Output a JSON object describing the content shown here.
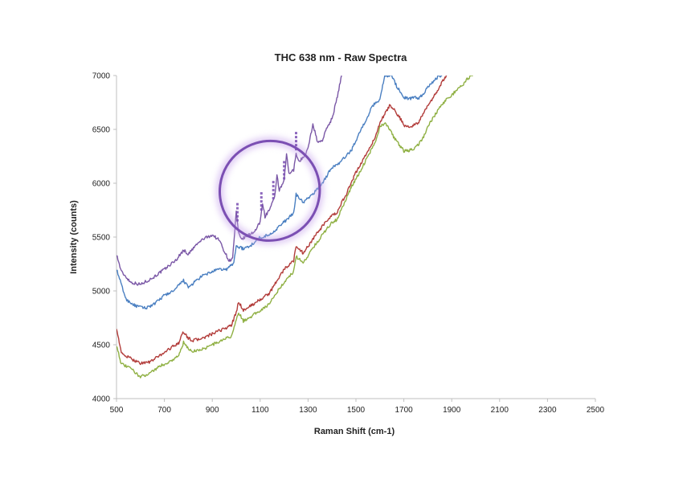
{
  "chart_data": {
    "type": "line",
    "title": "THC 638 nm - Raw Spectra",
    "xlabel": "Raman Shift (cm-1)",
    "ylabel": "Intensity (counts)",
    "xlim": [
      500,
      2500
    ],
    "ylim": [
      4000,
      7000
    ],
    "xticks": [
      "500",
      "700",
      "900",
      "1100",
      "1300",
      "1500",
      "1700",
      "1900",
      "2100",
      "2300",
      "2500"
    ],
    "yticks": [
      "4000",
      "4500",
      "5000",
      "5500",
      "6000",
      "6500",
      "7000"
    ],
    "grid": false,
    "legend": "none",
    "annotation": {
      "shape": "ellipse",
      "color": "#7b4fb3",
      "center": [
        1140,
        5930
      ],
      "semi_axes_x": 210,
      "semi_axes_y": 460,
      "rotation_deg": -38,
      "peak_markers_x": [
        1005,
        1105,
        1155,
        1200,
        1250
      ]
    },
    "series": [
      {
        "color": "#7a57a6",
        "x": [
          500,
          520,
          560,
          600,
          650,
          700,
          750,
          780,
          800,
          830,
          860,
          900,
          930,
          950,
          970,
          985,
          1000,
          1010,
          1020,
          1040,
          1060,
          1080,
          1100,
          1110,
          1120,
          1140,
          1160,
          1170,
          1180,
          1200,
          1210,
          1220,
          1240,
          1250,
          1260,
          1280,
          1300,
          1320,
          1340,
          1360,
          1380,
          1400,
          1420,
          1440
        ],
        "y": [
          5340,
          5180,
          5080,
          5060,
          5120,
          5200,
          5290,
          5380,
          5340,
          5420,
          5480,
          5520,
          5470,
          5370,
          5280,
          5300,
          5730,
          5530,
          5480,
          5500,
          5530,
          5560,
          5640,
          5820,
          5690,
          5760,
          5860,
          6080,
          5930,
          6020,
          6270,
          6090,
          6120,
          6290,
          6200,
          6240,
          6320,
          6550,
          6380,
          6400,
          6520,
          6600,
          6780,
          7000
        ]
      },
      {
        "color": "#4a7fc1",
        "x": [
          500,
          540,
          580,
          620,
          660,
          700,
          740,
          780,
          800,
          830,
          860,
          900,
          930,
          960,
          990,
          1000,
          1030,
          1060,
          1100,
          1140,
          1160,
          1200,
          1240,
          1250,
          1280,
          1320,
          1360,
          1400,
          1430,
          1460,
          1480,
          1500,
          1540,
          1570,
          1600,
          1620,
          1650,
          1670,
          1700,
          1720,
          1740,
          1760,
          1780,
          1800,
          1830,
          1850,
          1860
        ],
        "y": [
          5200,
          4920,
          4860,
          4840,
          4880,
          4960,
          5000,
          5100,
          5030,
          5090,
          5140,
          5180,
          5200,
          5200,
          5260,
          5420,
          5390,
          5420,
          5500,
          5520,
          5560,
          5640,
          5720,
          5900,
          5820,
          5900,
          6000,
          6150,
          6180,
          6260,
          6300,
          6400,
          6580,
          6720,
          6780,
          7000,
          7000,
          6900,
          6800,
          6780,
          6800,
          6790,
          6820,
          6900,
          6960,
          7000,
          7000
        ]
      },
      {
        "color": "#b23c3a",
        "x": [
          500,
          520,
          560,
          600,
          640,
          680,
          720,
          760,
          780,
          800,
          820,
          860,
          900,
          940,
          980,
          1000,
          1010,
          1030,
          1060,
          1100,
          1140,
          1160,
          1200,
          1240,
          1250,
          1280,
          1320,
          1360,
          1400,
          1420,
          1440,
          1460,
          1480,
          1500,
          1520,
          1550,
          1580,
          1600,
          1620,
          1640,
          1660,
          1680,
          1700,
          1720,
          1740,
          1760,
          1780,
          1800,
          1820,
          1840,
          1860,
          1880
        ],
        "y": [
          4660,
          4420,
          4370,
          4330,
          4340,
          4400,
          4460,
          4520,
          4620,
          4560,
          4540,
          4560,
          4600,
          4640,
          4680,
          4800,
          4900,
          4820,
          4860,
          4920,
          4980,
          5060,
          5200,
          5280,
          5420,
          5350,
          5480,
          5600,
          5700,
          5720,
          5820,
          5900,
          6000,
          6100,
          6180,
          6300,
          6420,
          6560,
          6640,
          6720,
          6680,
          6620,
          6540,
          6520,
          6540,
          6560,
          6640,
          6720,
          6780,
          6860,
          6940,
          7000
        ]
      },
      {
        "color": "#8fb043",
        "x": [
          500,
          520,
          560,
          600,
          640,
          680,
          720,
          760,
          780,
          800,
          820,
          860,
          900,
          940,
          980,
          1000,
          1010,
          1030,
          1060,
          1100,
          1140,
          1160,
          1200,
          1240,
          1250,
          1280,
          1320,
          1360,
          1400,
          1420,
          1440,
          1460,
          1480,
          1500,
          1520,
          1550,
          1580,
          1600,
          1620,
          1640,
          1660,
          1680,
          1700,
          1720,
          1740,
          1760,
          1780,
          1800,
          1820,
          1850,
          1880,
          1910,
          1940,
          1970,
          1990
        ],
        "y": [
          4500,
          4320,
          4280,
          4200,
          4240,
          4300,
          4340,
          4400,
          4520,
          4460,
          4440,
          4460,
          4500,
          4540,
          4580,
          4720,
          4800,
          4720,
          4760,
          4820,
          4880,
          4960,
          5080,
          5180,
          5320,
          5260,
          5400,
          5520,
          5640,
          5660,
          5760,
          5860,
          5960,
          6040,
          6120,
          6250,
          6380,
          6520,
          6560,
          6500,
          6420,
          6360,
          6300,
          6300,
          6320,
          6360,
          6420,
          6520,
          6600,
          6700,
          6780,
          6840,
          6900,
          6980,
          7000
        ]
      }
    ]
  }
}
